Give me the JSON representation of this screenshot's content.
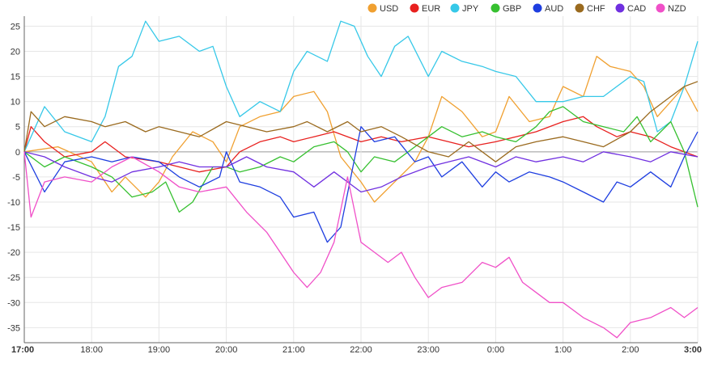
{
  "colors": {
    "USD": "#f0a030",
    "EUR": "#e8201e",
    "JPY": "#36c8e8",
    "GBP": "#36c030",
    "AUD": "#1e3ee0",
    "CHF": "#9a6a1e",
    "CAD": "#7030e0",
    "NZD": "#f050c8"
  },
  "chart_data": {
    "type": "line",
    "legend": [
      "USD",
      "EUR",
      "JPY",
      "GBP",
      "AUD",
      "CHF",
      "CAD",
      "NZD"
    ],
    "legend_position": "top-right",
    "grid": true,
    "zero_line": true,
    "xlim": [
      0,
      10
    ],
    "ylim": [
      -38,
      27
    ],
    "x_ticks": [
      {
        "x": 0,
        "label": "17:00",
        "bold": true
      },
      {
        "x": 1,
        "label": "18:00",
        "bold": false
      },
      {
        "x": 2,
        "label": "19:00",
        "bold": false
      },
      {
        "x": 3,
        "label": "20:00",
        "bold": false
      },
      {
        "x": 4,
        "label": "21:00",
        "bold": false
      },
      {
        "x": 5,
        "label": "22:00",
        "bold": false
      },
      {
        "x": 6,
        "label": "23:00",
        "bold": false
      },
      {
        "x": 7,
        "label": "0:00",
        "bold": false
      },
      {
        "x": 8,
        "label": "1:00",
        "bold": false
      },
      {
        "x": 9,
        "label": "2:00",
        "bold": false
      },
      {
        "x": 10,
        "label": "3:00",
        "bold": true
      }
    ],
    "y_ticks": [
      "25",
      "20",
      "15",
      "10",
      "5",
      "0",
      "-5",
      "-10",
      "-15",
      "-20",
      "-25",
      "-30",
      "-35"
    ],
    "series": [
      {
        "name": "USD",
        "points": [
          [
            0,
            0
          ],
          [
            0.5,
            1
          ],
          [
            1,
            -2
          ],
          [
            1.3,
            -8
          ],
          [
            1.5,
            -5
          ],
          [
            1.8,
            -9
          ],
          [
            2,
            -6
          ],
          [
            2.2,
            -1
          ],
          [
            2.5,
            4
          ],
          [
            2.8,
            2
          ],
          [
            3,
            -2
          ],
          [
            3.2,
            5
          ],
          [
            3.5,
            7
          ],
          [
            3.8,
            8
          ],
          [
            4,
            11
          ],
          [
            4.3,
            12
          ],
          [
            4.5,
            8
          ],
          [
            4.7,
            -1
          ],
          [
            5,
            -6
          ],
          [
            5.2,
            -10
          ],
          [
            5.5,
            -6
          ],
          [
            5.8,
            -2
          ],
          [
            6,
            3
          ],
          [
            6.2,
            11
          ],
          [
            6.5,
            8
          ],
          [
            6.8,
            3
          ],
          [
            7,
            4
          ],
          [
            7.2,
            11
          ],
          [
            7.5,
            6
          ],
          [
            7.8,
            7
          ],
          [
            8,
            13
          ],
          [
            8.3,
            11
          ],
          [
            8.5,
            19
          ],
          [
            8.7,
            17
          ],
          [
            9,
            16
          ],
          [
            9.2,
            13
          ],
          [
            9.4,
            7
          ],
          [
            9.6,
            10
          ],
          [
            9.8,
            13
          ],
          [
            10,
            8
          ]
        ]
      },
      {
        "name": "EUR",
        "points": [
          [
            0,
            0
          ],
          [
            0.1,
            5
          ],
          [
            0.3,
            2
          ],
          [
            0.6,
            -1
          ],
          [
            1,
            0
          ],
          [
            1.2,
            2
          ],
          [
            1.5,
            -1
          ],
          [
            2,
            -2
          ],
          [
            2.3,
            -3
          ],
          [
            2.6,
            -4
          ],
          [
            3,
            -3
          ],
          [
            3.2,
            0
          ],
          [
            3.5,
            2
          ],
          [
            3.8,
            3
          ],
          [
            4,
            2
          ],
          [
            4.3,
            3
          ],
          [
            4.6,
            4
          ],
          [
            5,
            2
          ],
          [
            5.3,
            3
          ],
          [
            5.6,
            2
          ],
          [
            6,
            3
          ],
          [
            6.3,
            2
          ],
          [
            6.6,
            1
          ],
          [
            7,
            2
          ],
          [
            7.3,
            3
          ],
          [
            7.6,
            4
          ],
          [
            8,
            6
          ],
          [
            8.3,
            7
          ],
          [
            8.5,
            5
          ],
          [
            8.8,
            3
          ],
          [
            9,
            4
          ],
          [
            9.3,
            3
          ],
          [
            9.6,
            1
          ],
          [
            10,
            -1
          ]
        ]
      },
      {
        "name": "JPY",
        "points": [
          [
            0,
            0
          ],
          [
            0.3,
            9
          ],
          [
            0.6,
            4
          ],
          [
            1,
            2
          ],
          [
            1.2,
            7
          ],
          [
            1.4,
            17
          ],
          [
            1.6,
            19
          ],
          [
            1.8,
            26
          ],
          [
            2,
            22
          ],
          [
            2.3,
            23
          ],
          [
            2.6,
            20
          ],
          [
            2.8,
            21
          ],
          [
            3,
            13
          ],
          [
            3.2,
            7
          ],
          [
            3.5,
            10
          ],
          [
            3.8,
            8
          ],
          [
            4,
            16
          ],
          [
            4.2,
            20
          ],
          [
            4.5,
            18
          ],
          [
            4.7,
            26
          ],
          [
            4.9,
            25
          ],
          [
            5.1,
            19
          ],
          [
            5.3,
            15
          ],
          [
            5.5,
            21
          ],
          [
            5.7,
            23
          ],
          [
            6,
            15
          ],
          [
            6.2,
            20
          ],
          [
            6.5,
            18
          ],
          [
            6.8,
            17
          ],
          [
            7,
            16
          ],
          [
            7.3,
            15
          ],
          [
            7.6,
            10
          ],
          [
            8,
            10
          ],
          [
            8.3,
            11
          ],
          [
            8.6,
            11
          ],
          [
            9,
            15
          ],
          [
            9.2,
            14
          ],
          [
            9.4,
            4
          ],
          [
            9.6,
            6
          ],
          [
            9.8,
            13
          ],
          [
            10,
            22
          ]
        ]
      },
      {
        "name": "GBP",
        "points": [
          [
            0,
            0
          ],
          [
            0.3,
            -3
          ],
          [
            0.6,
            -1
          ],
          [
            1,
            -3
          ],
          [
            1.3,
            -5
          ],
          [
            1.6,
            -9
          ],
          [
            1.9,
            -8
          ],
          [
            2.1,
            -6
          ],
          [
            2.3,
            -12
          ],
          [
            2.5,
            -10
          ],
          [
            2.8,
            -3
          ],
          [
            3,
            -3
          ],
          [
            3.2,
            -4
          ],
          [
            3.5,
            -3
          ],
          [
            3.8,
            -1
          ],
          [
            4,
            -2
          ],
          [
            4.3,
            1
          ],
          [
            4.6,
            2
          ],
          [
            4.8,
            0
          ],
          [
            5,
            -4
          ],
          [
            5.2,
            -1
          ],
          [
            5.5,
            -2
          ],
          [
            5.8,
            1
          ],
          [
            6,
            3
          ],
          [
            6.2,
            5
          ],
          [
            6.5,
            3
          ],
          [
            6.8,
            4
          ],
          [
            7,
            3
          ],
          [
            7.3,
            2
          ],
          [
            7.6,
            5
          ],
          [
            7.8,
            8
          ],
          [
            8,
            9
          ],
          [
            8.3,
            6
          ],
          [
            8.6,
            5
          ],
          [
            8.9,
            4
          ],
          [
            9.1,
            7
          ],
          [
            9.3,
            2
          ],
          [
            9.6,
            6
          ],
          [
            9.8,
            0
          ],
          [
            10,
            -11
          ]
        ]
      },
      {
        "name": "AUD",
        "points": [
          [
            0,
            0
          ],
          [
            0.3,
            -8
          ],
          [
            0.6,
            -2
          ],
          [
            1,
            -1
          ],
          [
            1.3,
            -2
          ],
          [
            1.6,
            -1
          ],
          [
            2,
            -2
          ],
          [
            2.3,
            -5
          ],
          [
            2.6,
            -7
          ],
          [
            2.9,
            -5
          ],
          [
            3,
            0
          ],
          [
            3.2,
            -6
          ],
          [
            3.5,
            -7
          ],
          [
            3.8,
            -9
          ],
          [
            4,
            -13
          ],
          [
            4.3,
            -12
          ],
          [
            4.5,
            -18
          ],
          [
            4.7,
            -15
          ],
          [
            5,
            5
          ],
          [
            5.2,
            2
          ],
          [
            5.5,
            3
          ],
          [
            5.8,
            -2
          ],
          [
            6,
            -1
          ],
          [
            6.2,
            -5
          ],
          [
            6.5,
            -2
          ],
          [
            6.8,
            -7
          ],
          [
            7,
            -4
          ],
          [
            7.2,
            -6
          ],
          [
            7.5,
            -4
          ],
          [
            7.8,
            -5
          ],
          [
            8,
            -6
          ],
          [
            8.3,
            -8
          ],
          [
            8.6,
            -10
          ],
          [
            8.8,
            -6
          ],
          [
            9,
            -7
          ],
          [
            9.3,
            -4
          ],
          [
            9.6,
            -7
          ],
          [
            9.8,
            -1
          ],
          [
            10,
            4
          ]
        ]
      },
      {
        "name": "CHF",
        "points": [
          [
            0,
            0
          ],
          [
            0.1,
            8
          ],
          [
            0.3,
            5
          ],
          [
            0.6,
            7
          ],
          [
            1,
            6
          ],
          [
            1.2,
            5
          ],
          [
            1.5,
            6
          ],
          [
            1.8,
            4
          ],
          [
            2,
            5
          ],
          [
            2.3,
            4
          ],
          [
            2.6,
            3
          ],
          [
            3,
            6
          ],
          [
            3.3,
            5
          ],
          [
            3.6,
            4
          ],
          [
            4,
            5
          ],
          [
            4.2,
            6
          ],
          [
            4.5,
            4
          ],
          [
            4.8,
            6
          ],
          [
            5,
            4
          ],
          [
            5.3,
            5
          ],
          [
            5.6,
            3
          ],
          [
            6,
            0
          ],
          [
            6.3,
            -1
          ],
          [
            6.6,
            2
          ],
          [
            7,
            -2
          ],
          [
            7.3,
            1
          ],
          [
            7.6,
            2
          ],
          [
            8,
            3
          ],
          [
            8.3,
            2
          ],
          [
            8.6,
            1
          ],
          [
            9,
            4
          ],
          [
            9.3,
            8
          ],
          [
            9.6,
            11
          ],
          [
            9.8,
            13
          ],
          [
            10,
            14
          ]
        ]
      },
      {
        "name": "CAD",
        "points": [
          [
            0,
            0
          ],
          [
            0.3,
            -1
          ],
          [
            0.6,
            -3
          ],
          [
            1,
            -5
          ],
          [
            1.3,
            -6
          ],
          [
            1.6,
            -4
          ],
          [
            2,
            -3
          ],
          [
            2.3,
            -2
          ],
          [
            2.6,
            -3
          ],
          [
            3,
            -3
          ],
          [
            3.3,
            -1
          ],
          [
            3.6,
            -3
          ],
          [
            4,
            -4
          ],
          [
            4.3,
            -7
          ],
          [
            4.6,
            -4
          ],
          [
            5,
            -8
          ],
          [
            5.3,
            -7
          ],
          [
            5.6,
            -5
          ],
          [
            6,
            -3
          ],
          [
            6.3,
            -2
          ],
          [
            6.6,
            -1
          ],
          [
            7,
            -3
          ],
          [
            7.3,
            -1
          ],
          [
            7.6,
            -2
          ],
          [
            8,
            -1
          ],
          [
            8.3,
            -2
          ],
          [
            8.6,
            0
          ],
          [
            9,
            -1
          ],
          [
            9.3,
            -2
          ],
          [
            9.6,
            0
          ],
          [
            10,
            -1
          ]
        ]
      },
      {
        "name": "NZD",
        "points": [
          [
            0,
            0
          ],
          [
            0.1,
            -13
          ],
          [
            0.3,
            -6
          ],
          [
            0.6,
            -5
          ],
          [
            1,
            -6
          ],
          [
            1.3,
            -3
          ],
          [
            1.6,
            -1
          ],
          [
            2,
            -4
          ],
          [
            2.3,
            -7
          ],
          [
            2.6,
            -8
          ],
          [
            3,
            -7
          ],
          [
            3.3,
            -12
          ],
          [
            3.6,
            -16
          ],
          [
            3.8,
            -20
          ],
          [
            4,
            -24
          ],
          [
            4.2,
            -27
          ],
          [
            4.4,
            -24
          ],
          [
            4.6,
            -18
          ],
          [
            4.8,
            -5
          ],
          [
            5,
            -18
          ],
          [
            5.2,
            -20
          ],
          [
            5.4,
            -22
          ],
          [
            5.6,
            -20
          ],
          [
            5.8,
            -25
          ],
          [
            6,
            -29
          ],
          [
            6.2,
            -27
          ],
          [
            6.5,
            -26
          ],
          [
            6.8,
            -22
          ],
          [
            7,
            -23
          ],
          [
            7.2,
            -21
          ],
          [
            7.4,
            -26
          ],
          [
            7.6,
            -28
          ],
          [
            7.8,
            -30
          ],
          [
            8,
            -30
          ],
          [
            8.3,
            -33
          ],
          [
            8.6,
            -35
          ],
          [
            8.8,
            -37
          ],
          [
            9,
            -34
          ],
          [
            9.3,
            -33
          ],
          [
            9.6,
            -31
          ],
          [
            9.8,
            -33
          ],
          [
            10,
            -31
          ]
        ]
      }
    ]
  }
}
